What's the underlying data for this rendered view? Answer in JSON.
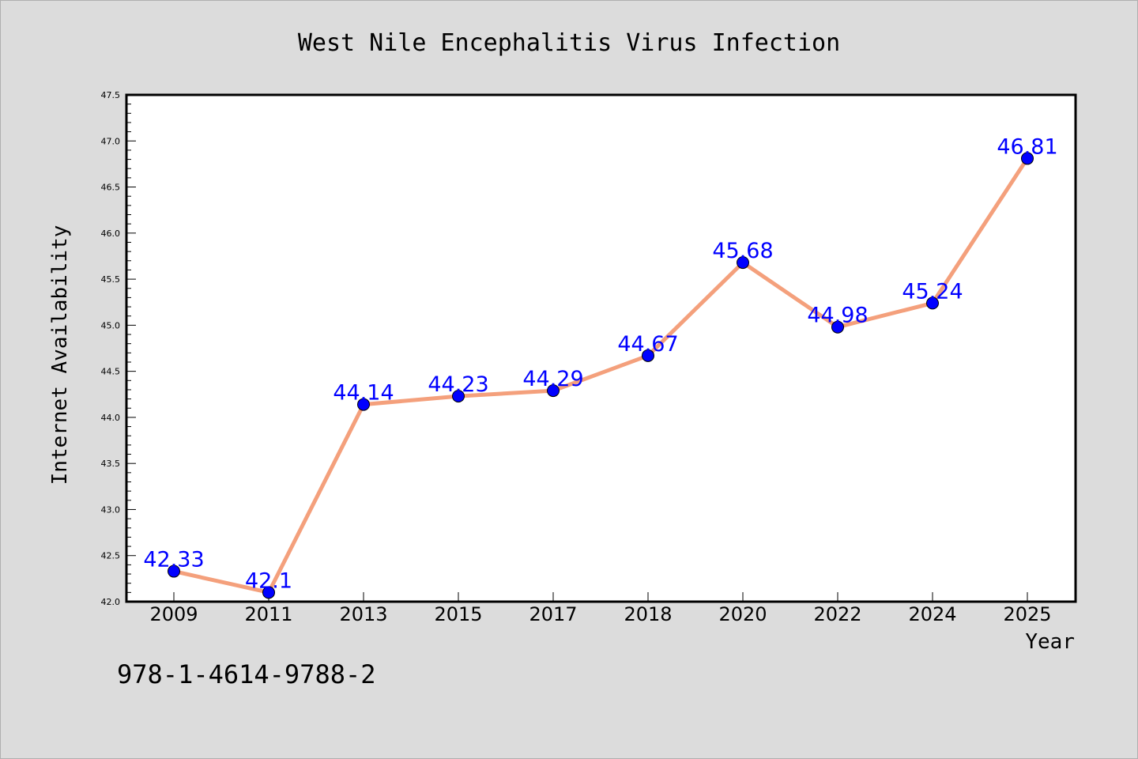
{
  "chart_data": {
    "type": "line",
    "title": "West Nile Encephalitis Virus Infection",
    "xlabel": "Year",
    "ylabel": "Internet Availability",
    "categories": [
      "2009",
      "2011",
      "2013",
      "2015",
      "2017",
      "2018",
      "2020",
      "2022",
      "2024",
      "2025"
    ],
    "values": [
      42.33,
      42.1,
      44.14,
      44.23,
      44.29,
      44.67,
      45.68,
      44.98,
      45.24,
      46.81
    ],
    "data_labels": [
      "42.33",
      "42.1",
      "44.14",
      "44.23",
      "44.29",
      "44.67",
      "45.68",
      "44.98",
      "45.24",
      "46.81"
    ],
    "ylim": [
      42.0,
      47.5
    ],
    "yticks": [
      "42.0",
      "42.5",
      "43.0",
      "43.5",
      "44.0",
      "44.5",
      "45.0",
      "45.5",
      "46.0",
      "46.5",
      "47.0",
      "47.5"
    ],
    "grid": false,
    "line_color": "#f4a07c",
    "marker_color": "#0000ff",
    "label_color": "#0000ff"
  },
  "footer": {
    "isbn": "978-1-4614-9788-2"
  },
  "colors": {
    "background": "#dcdcdc",
    "plot_area": "#ffffff"
  }
}
